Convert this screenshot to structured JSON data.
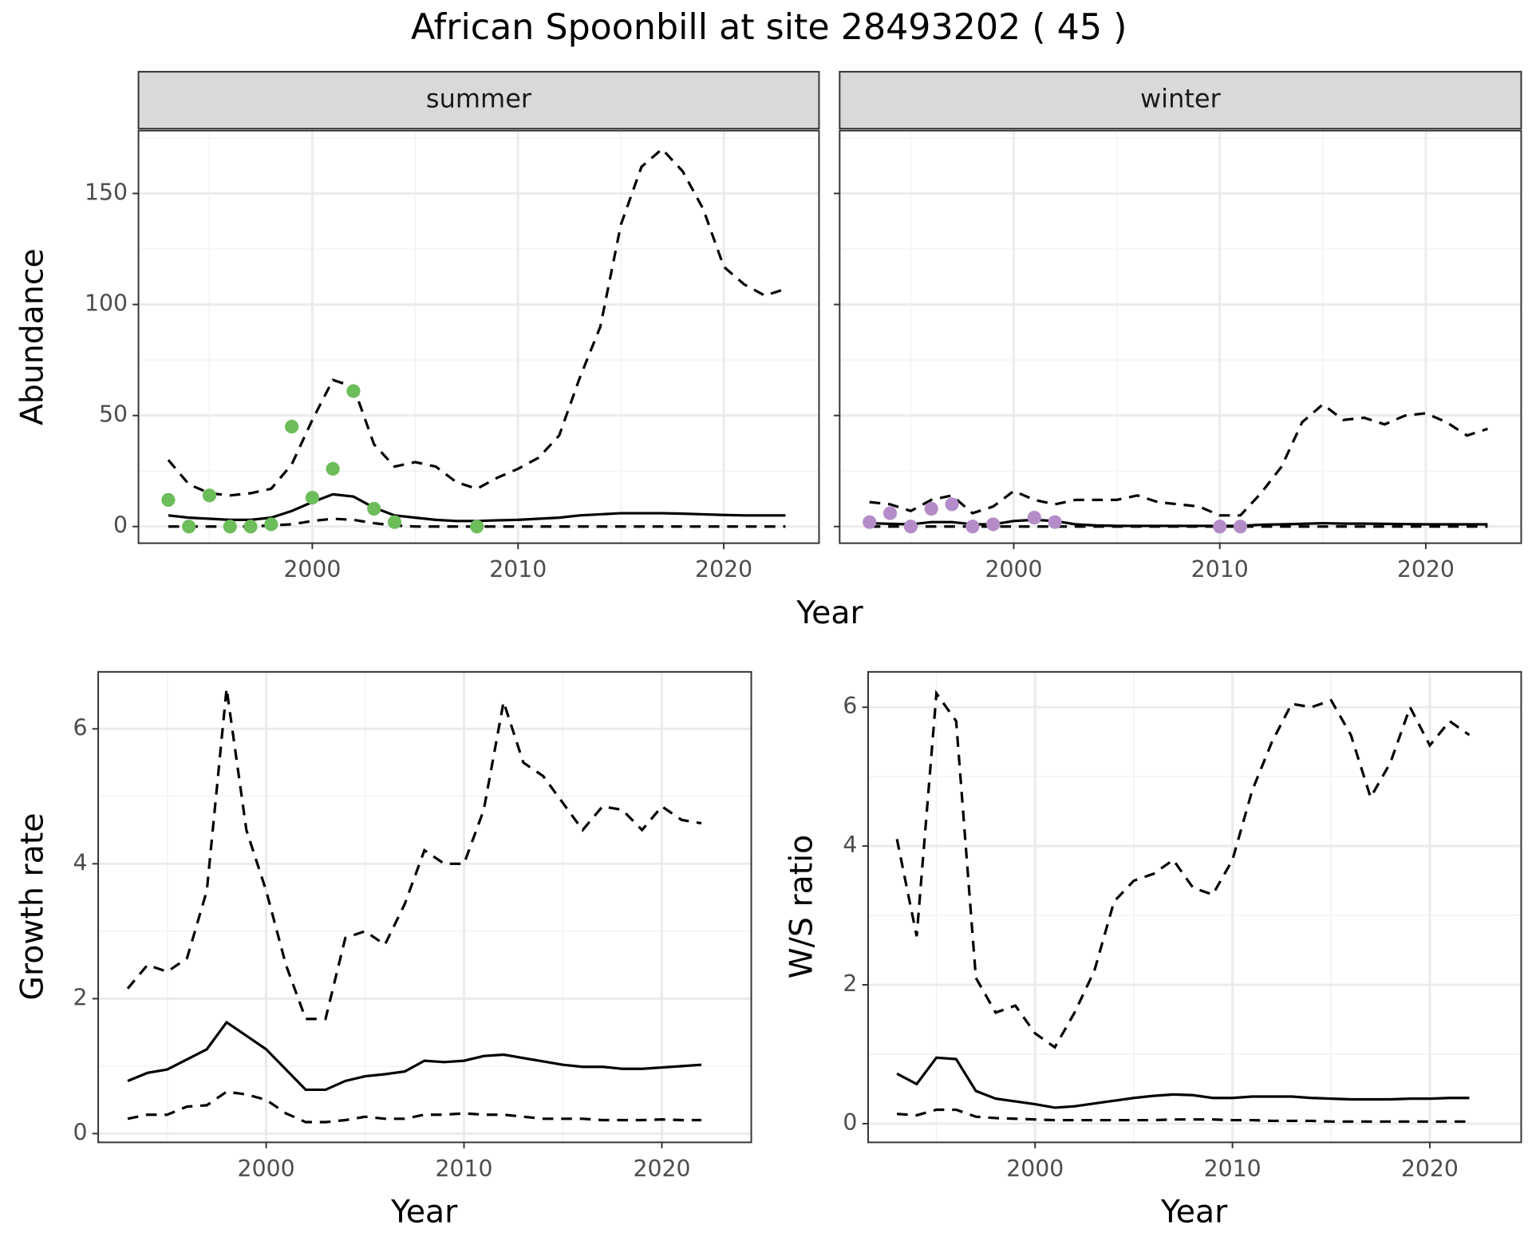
{
  "title": "African Spoonbill at site 28493202 ( 45 )",
  "chart_data": [
    {
      "type": "line",
      "panel": "summer",
      "ylabel": "Abundance",
      "xlabel": "Year",
      "x": [
        1993,
        1994,
        1995,
        1996,
        1997,
        1998,
        1999,
        2000,
        2001,
        2002,
        2003,
        2004,
        2005,
        2006,
        2007,
        2008,
        2009,
        2010,
        2011,
        2012,
        2013,
        2014,
        2015,
        2016,
        2017,
        2018,
        2019,
        2020,
        2021,
        2022,
        2023
      ],
      "series": [
        {
          "color": "#000000",
          "dashed": true,
          "values": [
            30,
            19,
            15,
            14,
            15,
            17,
            28,
            48,
            66,
            63,
            37,
            27,
            29,
            27,
            20,
            17,
            22,
            26,
            31,
            41,
            67,
            90,
            136,
            162,
            170,
            160,
            143,
            117,
            109,
            104,
            107
          ]
        },
        {
          "color": "#000000",
          "dashed": false,
          "values": [
            5,
            4,
            3.5,
            3,
            3,
            4,
            7,
            11,
            14.5,
            13.5,
            8.5,
            5,
            4,
            3,
            2.5,
            2.5,
            2.8,
            3,
            3.5,
            4,
            5,
            5.5,
            6,
            6,
            6,
            5.8,
            5.5,
            5.2,
            5,
            5,
            5
          ]
        },
        {
          "color": "#000000",
          "dashed": true,
          "values": [
            0,
            0,
            0,
            0,
            0,
            0.5,
            1,
            2.5,
            3.5,
            3,
            1.5,
            0.5,
            0,
            0,
            0,
            0,
            0,
            0,
            0,
            0,
            0,
            0,
            0,
            0,
            0,
            0,
            0,
            0,
            0,
            0,
            0
          ]
        }
      ],
      "points": {
        "color": "#6dbd5b",
        "x": [
          1993,
          1994,
          1995,
          1996,
          1997,
          1998,
          1999,
          2000,
          2001,
          2002,
          2003,
          2004,
          2008
        ],
        "values": [
          12,
          0,
          14,
          0,
          0,
          1,
          45,
          13,
          26,
          61,
          8,
          2,
          0
        ]
      },
      "xlim": [
        1991.55,
        2024.63
      ],
      "xticks": [
        2000,
        2010,
        2020
      ],
      "minor_xticks": [
        1995,
        2005,
        2015
      ],
      "ylim": [
        -7.5,
        178.3
      ],
      "yticks": [
        0,
        50,
        100,
        150
      ],
      "minor_yticks": [
        25,
        75,
        125,
        175
      ],
      "show_ytick_labels": true,
      "grid": true
    },
    {
      "type": "line",
      "panel": "winter",
      "x": [
        1993,
        1994,
        1995,
        1996,
        1997,
        1998,
        1999,
        2000,
        2001,
        2002,
        2003,
        2004,
        2005,
        2006,
        2007,
        2008,
        2009,
        2010,
        2011,
        2012,
        2013,
        2014,
        2015,
        2016,
        2017,
        2018,
        2019,
        2020,
        2021,
        2022,
        2023
      ],
      "series": [
        {
          "color": "#000000",
          "dashed": true,
          "values": [
            11,
            10,
            7,
            12,
            14,
            6,
            9,
            16,
            12,
            10,
            12,
            12,
            12,
            14,
            11,
            10,
            9,
            5,
            5,
            15,
            27,
            47,
            55,
            48,
            49,
            46,
            50,
            51,
            47,
            41,
            44
          ]
        },
        {
          "color": "#000000",
          "dashed": false,
          "values": [
            1.5,
            1.2,
            1,
            2,
            2,
            1,
            1,
            2.5,
            3,
            2.5,
            1,
            0.5,
            0.3,
            0.3,
            0.3,
            0.3,
            0.3,
            0.3,
            0.3,
            0.8,
            1,
            1.2,
            1.5,
            1.3,
            1.3,
            1.2,
            1.1,
            1,
            1,
            1,
            1
          ]
        },
        {
          "color": "#000000",
          "dashed": true,
          "values": [
            0,
            0,
            0,
            0,
            0,
            0,
            0,
            0,
            0,
            0,
            0,
            0,
            0,
            0,
            0,
            0,
            0,
            0,
            0,
            0,
            0,
            0,
            0,
            0,
            0,
            0,
            0,
            0,
            0,
            0,
            0
          ]
        }
      ],
      "points": {
        "color": "#b48dc8",
        "x": [
          1993,
          1994,
          1995,
          1996,
          1997,
          1998,
          1999,
          2001,
          2002,
          2010,
          2011
        ],
        "values": [
          2,
          6,
          0,
          8,
          10,
          0,
          1,
          4,
          2,
          0,
          0
        ]
      },
      "xlim": [
        1991.55,
        2024.63
      ],
      "xticks": [
        2000,
        2010,
        2020
      ],
      "minor_xticks": [
        1995,
        2005,
        2015
      ],
      "ylim": [
        -7.5,
        178.3
      ],
      "yticks": [
        0,
        50,
        100,
        150
      ],
      "minor_yticks": [
        25,
        75,
        125,
        175
      ],
      "show_ytick_labels": false,
      "grid": true
    },
    {
      "type": "line",
      "ylabel": "Growth rate",
      "xlabel": "Year",
      "x": [
        1993,
        1994,
        1995,
        1996,
        1997,
        1998,
        1999,
        2000,
        2001,
        2002,
        2003,
        2004,
        2005,
        2006,
        2007,
        2008,
        2009,
        2010,
        2011,
        2012,
        2013,
        2014,
        2015,
        2016,
        2017,
        2018,
        2019,
        2020,
        2021,
        2022
      ],
      "series": [
        {
          "color": "#000000",
          "dashed": true,
          "values": [
            2.15,
            2.5,
            2.4,
            2.6,
            3.6,
            6.6,
            4.5,
            3.6,
            2.5,
            1.7,
            1.7,
            2.9,
            3.0,
            2.8,
            3.4,
            4.2,
            4.0,
            4.0,
            4.8,
            6.4,
            5.5,
            5.3,
            4.9,
            4.5,
            4.85,
            4.8,
            4.5,
            4.85,
            4.65,
            4.6
          ]
        },
        {
          "color": "#000000",
          "dashed": false,
          "values": [
            0.78,
            0.9,
            0.95,
            1.1,
            1.25,
            1.65,
            1.45,
            1.25,
            0.95,
            0.65,
            0.65,
            0.78,
            0.85,
            0.88,
            0.92,
            1.08,
            1.06,
            1.08,
            1.15,
            1.17,
            1.12,
            1.07,
            1.02,
            0.99,
            0.99,
            0.96,
            0.96,
            0.98,
            1.0,
            1.02
          ]
        },
        {
          "color": "#000000",
          "dashed": true,
          "values": [
            0.22,
            0.28,
            0.28,
            0.4,
            0.42,
            0.62,
            0.58,
            0.5,
            0.3,
            0.17,
            0.17,
            0.2,
            0.25,
            0.22,
            0.22,
            0.28,
            0.28,
            0.3,
            0.28,
            0.28,
            0.25,
            0.22,
            0.22,
            0.22,
            0.2,
            0.2,
            0.2,
            0.21,
            0.2,
            0.2
          ]
        }
      ],
      "xlim": [
        1991.51,
        2024.52
      ],
      "xticks": [
        2000,
        2010,
        2020
      ],
      "minor_xticks": [
        1995,
        2005,
        2015
      ],
      "ylim": [
        -0.13,
        6.845
      ],
      "yticks": [
        0,
        2,
        4,
        6
      ],
      "minor_yticks": [
        1,
        3,
        5
      ],
      "show_ytick_labels": true,
      "grid": true
    },
    {
      "type": "line",
      "ylabel": "W/S ratio",
      "xlabel": "Year",
      "x": [
        1993,
        1994,
        1995,
        1996,
        1997,
        1998,
        1999,
        2000,
        2001,
        2002,
        2003,
        2004,
        2005,
        2006,
        2007,
        2008,
        2009,
        2010,
        2011,
        2012,
        2013,
        2014,
        2015,
        2016,
        2017,
        2018,
        2019,
        2020,
        2021,
        2022
      ],
      "series": [
        {
          "color": "#000000",
          "dashed": true,
          "values": [
            4.1,
            2.7,
            6.2,
            5.8,
            2.1,
            1.6,
            1.7,
            1.3,
            1.1,
            1.6,
            2.2,
            3.2,
            3.5,
            3.6,
            3.8,
            3.4,
            3.3,
            3.8,
            4.8,
            5.5,
            6.05,
            6.0,
            6.1,
            5.6,
            4.7,
            5.2,
            6.0,
            5.45,
            5.8,
            5.6
          ]
        },
        {
          "color": "#000000",
          "dashed": false,
          "values": [
            0.72,
            0.57,
            0.95,
            0.93,
            0.47,
            0.36,
            0.32,
            0.28,
            0.23,
            0.25,
            0.29,
            0.33,
            0.37,
            0.4,
            0.42,
            0.41,
            0.37,
            0.37,
            0.39,
            0.39,
            0.39,
            0.37,
            0.36,
            0.35,
            0.35,
            0.35,
            0.36,
            0.36,
            0.37,
            0.37
          ]
        },
        {
          "color": "#000000",
          "dashed": true,
          "values": [
            0.14,
            0.12,
            0.2,
            0.2,
            0.1,
            0.08,
            0.07,
            0.06,
            0.05,
            0.05,
            0.05,
            0.05,
            0.05,
            0.05,
            0.06,
            0.06,
            0.06,
            0.05,
            0.05,
            0.04,
            0.04,
            0.04,
            0.03,
            0.03,
            0.03,
            0.03,
            0.03,
            0.03,
            0.03,
            0.03
          ]
        }
      ],
      "xlim": [
        1991.54,
        2024.63
      ],
      "xticks": [
        2000,
        2010,
        2020
      ],
      "minor_xticks": [
        1995,
        2005,
        2015
      ],
      "ylim": [
        -0.27,
        6.51
      ],
      "yticks": [
        0,
        2,
        4,
        6
      ],
      "minor_yticks": [
        1,
        3,
        5
      ],
      "show_ytick_labels": true,
      "grid": true
    }
  ]
}
